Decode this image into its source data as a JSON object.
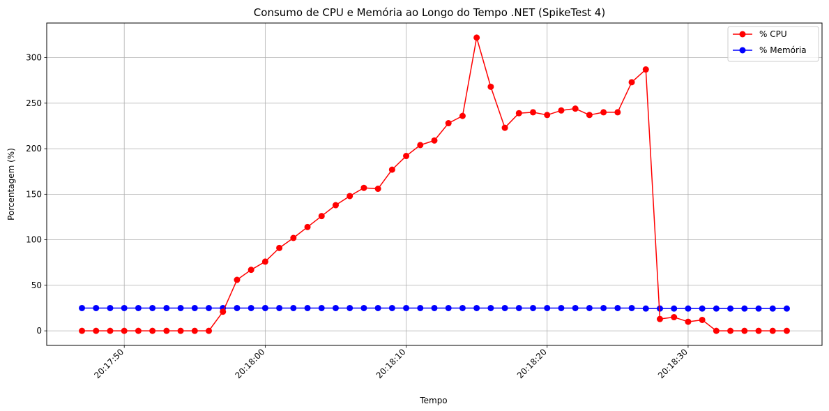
{
  "chart_data": {
    "type": "line",
    "title": "Consumo de CPU e Memória ao Longo do Tempo .NET (SpikeTest 4)",
    "xlabel": "Tempo",
    "ylabel": "Porcentagem (%)",
    "x_start": "20:17:47",
    "x": [
      "20:17:47",
      "20:17:48",
      "20:17:49",
      "20:17:50",
      "20:17:51",
      "20:17:52",
      "20:17:53",
      "20:17:54",
      "20:17:55",
      "20:17:56",
      "20:17:57",
      "20:17:58",
      "20:17:59",
      "20:18:00",
      "20:18:01",
      "20:18:02",
      "20:18:03",
      "20:18:04",
      "20:18:05",
      "20:18:06",
      "20:18:07",
      "20:18:08",
      "20:18:09",
      "20:18:10",
      "20:18:11",
      "20:18:12",
      "20:18:13",
      "20:18:14",
      "20:18:15",
      "20:18:16",
      "20:18:17",
      "20:18:18",
      "20:18:19",
      "20:18:20",
      "20:18:21",
      "20:18:22",
      "20:18:23",
      "20:18:24",
      "20:18:25",
      "20:18:26",
      "20:18:27",
      "20:18:28",
      "20:18:29",
      "20:18:30",
      "20:18:31",
      "20:18:32",
      "20:18:33",
      "20:18:34",
      "20:18:35",
      "20:18:36",
      "20:18:37"
    ],
    "x_ticks": [
      "20:17:50",
      "20:18:00",
      "20:18:10",
      "20:18:20",
      "20:18:30"
    ],
    "y_ticks": [
      0,
      50,
      100,
      150,
      200,
      250,
      300
    ],
    "ylim": [
      -16,
      338
    ],
    "grid": true,
    "legend_position": "top-right",
    "series": [
      {
        "name": "% CPU",
        "color": "#ff0000",
        "values": [
          0,
          0,
          0,
          0,
          0,
          0,
          0,
          0,
          0,
          0,
          21,
          56,
          67,
          76,
          91,
          102,
          114,
          126,
          138,
          148,
          157,
          156,
          177,
          192,
          204,
          209,
          228,
          236,
          322,
          268,
          223,
          239,
          240,
          237,
          242,
          244,
          237,
          240,
          240,
          273,
          287,
          13,
          15,
          10,
          12,
          0,
          0,
          0,
          0,
          0,
          0
        ]
      },
      {
        "name": "% Memória",
        "color": "#0000ff",
        "values": [
          25,
          25,
          25,
          25,
          25,
          25,
          25,
          25,
          25,
          25,
          25,
          25,
          25,
          25,
          25,
          25,
          25,
          25,
          25,
          25,
          25,
          25,
          25,
          25,
          25,
          25,
          25,
          25,
          25,
          25,
          25,
          25,
          25,
          25,
          25,
          25,
          25,
          25,
          25,
          25,
          24.5,
          24.5,
          24.5,
          24.5,
          24.5,
          24.5,
          24.5,
          24.5,
          24.5,
          24.5,
          24.5
        ]
      }
    ]
  }
}
